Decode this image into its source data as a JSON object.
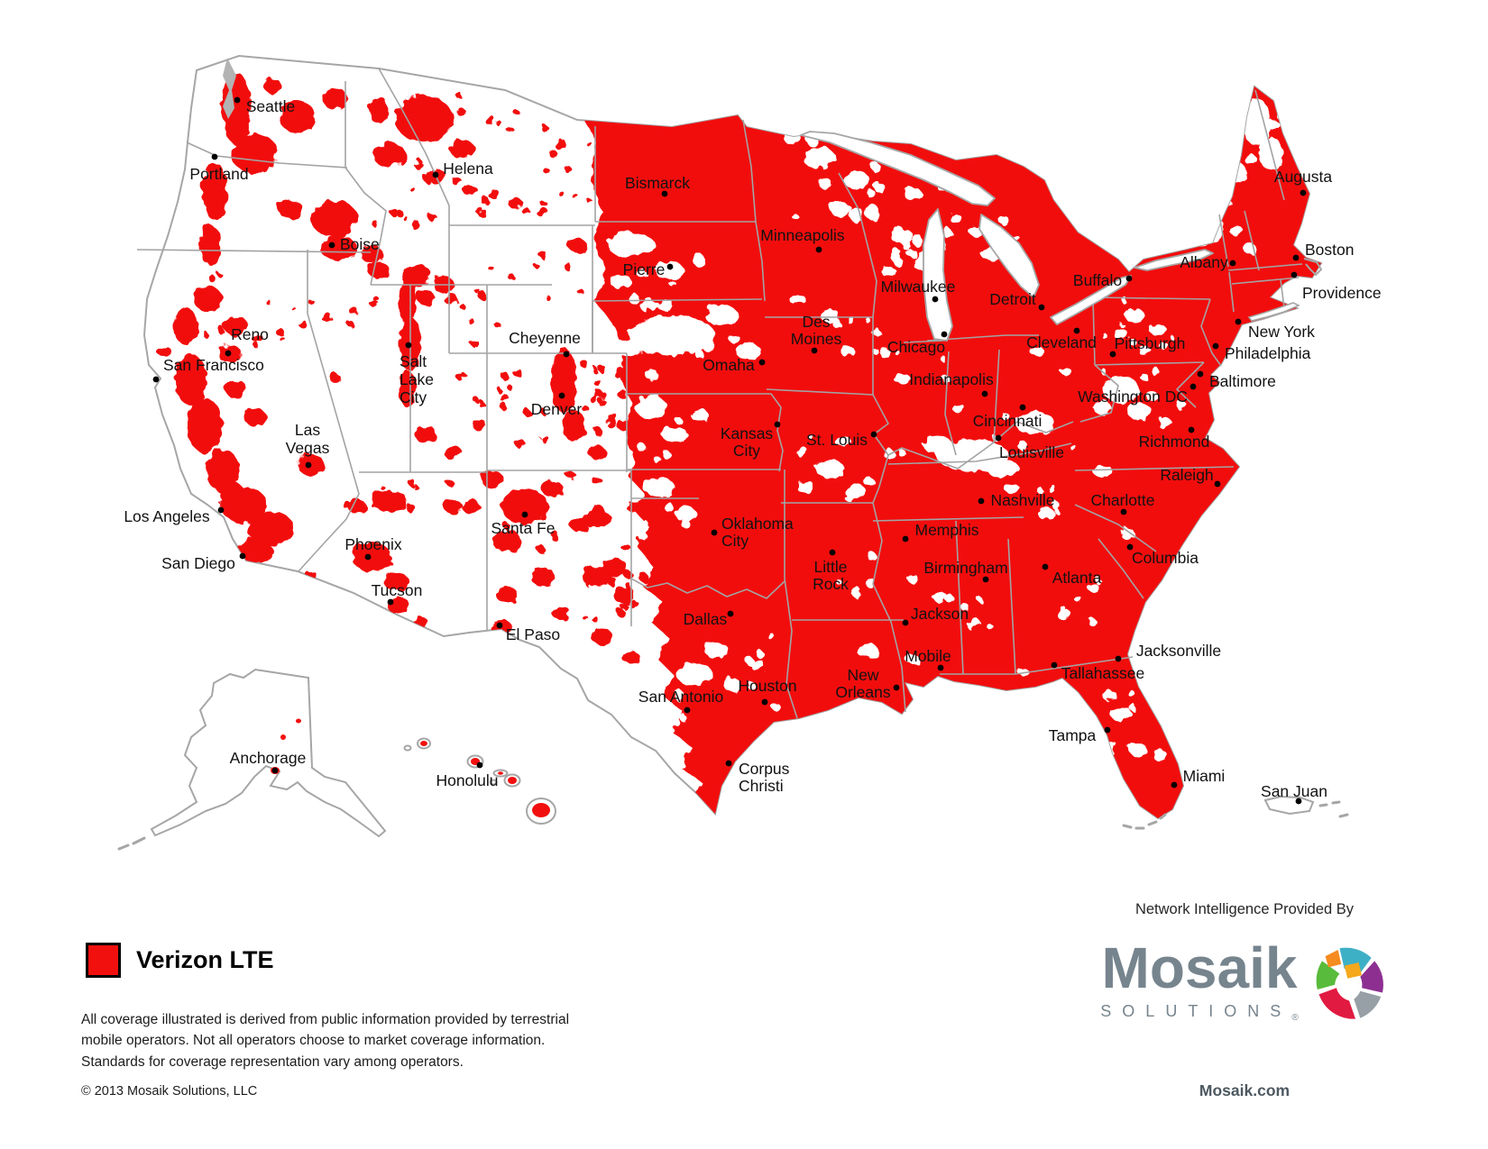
{
  "theme": {
    "coverage_red": "#f2100f",
    "border_gray": "#a6a6a6",
    "label_color": "#121212",
    "brand_slate": "#76848e"
  },
  "legend": {
    "label": "Verizon LTE"
  },
  "disclaimer_lines": [
    "All coverage illustrated is derived from public information provided by terrestrial",
    "mobile operators. Not all operators choose to market coverage information.",
    "Standards for coverage representation vary among operators."
  ],
  "footer": {
    "copyright": "© 2013 Mosaik Solutions, LLC",
    "website": "Mosaik.com"
  },
  "attribution": {
    "heading": "Network Intelligence Provided By",
    "brand": "Mosaik",
    "brand_sub": "SOLUTIONS",
    "registered": "®"
  },
  "map": {
    "cities": [
      {
        "name": "Seattle",
        "dot": [
          263,
          111
        ],
        "label": [
          300,
          124
        ]
      },
      {
        "name": "Portland",
        "dot": [
          238,
          174
        ],
        "label": [
          243,
          199
        ]
      },
      {
        "name": "Helena",
        "dot": [
          483,
          194
        ],
        "label": [
          519,
          193
        ]
      },
      {
        "name": "Boise",
        "dot": [
          368,
          272
        ],
        "label": [
          377,
          277
        ],
        "anchor": "start"
      },
      {
        "name": "Reno",
        "dot": [
          253,
          392
        ],
        "label": [
          277,
          377
        ]
      },
      {
        "name": "San Francisco",
        "dot": [
          173,
          421
        ],
        "label": [
          181,
          411
        ],
        "anchor": "start"
      },
      {
        "name": "Cheyenne",
        "dot": [
          628,
          393
        ],
        "label": [
          604,
          381
        ]
      },
      {
        "name": "Salt Lake City",
        "dot": [
          453,
          383
        ],
        "lines": [
          "Salt",
          "Lake",
          "City"
        ],
        "label": [
          443,
          407
        ],
        "anchor": "start",
        "lh": 20
      },
      {
        "name": "Denver",
        "dot": [
          623,
          439
        ],
        "label": [
          617,
          460
        ]
      },
      {
        "name": "Las Vegas",
        "dot": [
          342,
          516
        ],
        "lines": [
          "Las",
          "Vegas"
        ],
        "label": [
          341,
          483
        ],
        "lh": 20
      },
      {
        "name": "Los Angeles",
        "dot": [
          245,
          566
        ],
        "label": [
          185,
          579
        ]
      },
      {
        "name": "San Diego",
        "dot": [
          269,
          617
        ],
        "label": [
          220,
          631
        ]
      },
      {
        "name": "Phoenix",
        "dot": [
          408,
          618
        ],
        "label": [
          414,
          610
        ]
      },
      {
        "name": "Tucson",
        "dot": [
          433,
          668
        ],
        "label": [
          440,
          661
        ]
      },
      {
        "name": "Santa Fe",
        "dot": [
          582,
          571
        ],
        "label": [
          580,
          592
        ]
      },
      {
        "name": "El Paso",
        "dot": [
          554,
          694
        ],
        "label": [
          591,
          710
        ]
      },
      {
        "name": "Bismarck",
        "dot": [
          737,
          215
        ],
        "label": [
          729,
          209
        ]
      },
      {
        "name": "Pierre",
        "dot": [
          743,
          296
        ],
        "label": [
          714,
          305
        ]
      },
      {
        "name": "Minneapolis",
        "dot": [
          908,
          277
        ],
        "label": [
          890,
          267
        ]
      },
      {
        "name": "Milwaukee",
        "dot": [
          1037,
          332
        ],
        "label": [
          1018,
          324
        ]
      },
      {
        "name": "Des Moines",
        "dot": [
          903,
          389
        ],
        "lines": [
          "Des",
          "Moines"
        ],
        "label": [
          905,
          363
        ],
        "lh": 19
      },
      {
        "name": "Omaha",
        "dot": [
          845,
          402
        ],
        "label": [
          808,
          411
        ]
      },
      {
        "name": "Chicago",
        "dot": [
          1047,
          371
        ],
        "label": [
          1016,
          391
        ]
      },
      {
        "name": "Indianapolis",
        "dot": [
          1092,
          437
        ],
        "label": [
          1055,
          427
        ]
      },
      {
        "name": "Detroit",
        "dot": [
          1155,
          341
        ],
        "label": [
          1123,
          338
        ]
      },
      {
        "name": "Cleveland",
        "dot": [
          1194,
          367
        ],
        "label": [
          1177,
          386
        ]
      },
      {
        "name": "Buffalo",
        "dot": [
          1252,
          309
        ],
        "label": [
          1217,
          317
        ]
      },
      {
        "name": "Pittsburgh",
        "dot": [
          1234,
          393
        ],
        "label": [
          1275,
          387
        ]
      },
      {
        "name": "Albany",
        "dot": [
          1367,
          292
        ],
        "label": [
          1335,
          297
        ]
      },
      {
        "name": "Augusta",
        "dot": [
          1445,
          214
        ],
        "label": [
          1445,
          202
        ]
      },
      {
        "name": "Boston",
        "dot": [
          1437,
          286
        ],
        "label": [
          1447,
          283
        ],
        "anchor": "start"
      },
      {
        "name": "Providence",
        "dot": [
          1435,
          305
        ],
        "label": [
          1444,
          331
        ],
        "anchor": "start"
      },
      {
        "name": "New York",
        "dot": [
          1373,
          357
        ],
        "label": [
          1384,
          374
        ],
        "anchor": "start"
      },
      {
        "name": "Philadelphia",
        "dot": [
          1348,
          384
        ],
        "label": [
          1358,
          398
        ],
        "anchor": "start"
      },
      {
        "name": "Baltimore",
        "dot": [
          1331,
          415
        ],
        "label": [
          1341,
          429
        ],
        "anchor": "start"
      },
      {
        "name": "Washington DC",
        "dot": [
          1323,
          429
        ],
        "label": [
          1317,
          446
        ],
        "anchor": "end"
      },
      {
        "name": "Cincinnati",
        "dot": [
          1134,
          452
        ],
        "label": [
          1117,
          473
        ]
      },
      {
        "name": "Louisville",
        "dot": [
          1107,
          486
        ],
        "label": [
          1144,
          508
        ]
      },
      {
        "name": "Richmond",
        "dot": [
          1321,
          477
        ],
        "label": [
          1302,
          496
        ]
      },
      {
        "name": "Raleigh",
        "dot": [
          1350,
          537
        ],
        "label": [
          1316,
          533
        ]
      },
      {
        "name": "Charlotte",
        "dot": [
          1246,
          568
        ],
        "label": [
          1245,
          561
        ]
      },
      {
        "name": "Nashville",
        "dot": [
          1088,
          556
        ],
        "label": [
          1134,
          561
        ]
      },
      {
        "name": "Memphis",
        "dot": [
          1004,
          598
        ],
        "label": [
          1050,
          594
        ]
      },
      {
        "name": "Columbia",
        "dot": [
          1253,
          607
        ],
        "label": [
          1292,
          625
        ]
      },
      {
        "name": "Birmingham",
        "dot": [
          1093,
          643
        ],
        "label": [
          1071,
          636
        ]
      },
      {
        "name": "Atlanta",
        "dot": [
          1159,
          629
        ],
        "label": [
          1194,
          647
        ]
      },
      {
        "name": "Jackson",
        "dot": [
          1004,
          691
        ],
        "label": [
          1042,
          687
        ]
      },
      {
        "name": "Mobile",
        "dot": [
          1043,
          741
        ],
        "label": [
          1029,
          734
        ]
      },
      {
        "name": "New Orleans",
        "dot": [
          994,
          763
        ],
        "lines": [
          "New",
          "Orleans"
        ],
        "label": [
          957,
          755
        ],
        "lh": 19
      },
      {
        "name": "Houston",
        "dot": [
          848,
          779
        ],
        "label": [
          851,
          767
        ]
      },
      {
        "name": "San Antonio",
        "dot": [
          762,
          788
        ],
        "label": [
          755,
          779
        ]
      },
      {
        "name": "Dallas",
        "dot": [
          810,
          681
        ],
        "label": [
          782,
          693
        ]
      },
      {
        "name": "Little Rock",
        "dot": [
          923,
          613
        ],
        "lines": [
          "Little",
          "Rock"
        ],
        "label": [
          921,
          635
        ],
        "lh": 19
      },
      {
        "name": "St. Louis",
        "dot": [
          969,
          482
        ],
        "label": [
          928,
          494
        ]
      },
      {
        "name": "Kansas City",
        "dot": [
          862,
          471
        ],
        "lines": [
          "Kansas",
          "City"
        ],
        "label": [
          828,
          487
        ],
        "lh": 19
      },
      {
        "name": "Oklahoma City",
        "dot": [
          792,
          591
        ],
        "lines": [
          "Oklahoma",
          "City"
        ],
        "label": [
          800,
          587
        ],
        "anchor": "start",
        "lh": 19
      },
      {
        "name": "Corpus Christi",
        "dot": [
          808,
          847
        ],
        "lines": [
          "Corpus",
          "Christi"
        ],
        "label": [
          819,
          859
        ],
        "anchor": "start",
        "lh": 19
      },
      {
        "name": "Tampa",
        "dot": [
          1228,
          810
        ],
        "label": [
          1189,
          822
        ]
      },
      {
        "name": "Miami",
        "dot": [
          1302,
          871
        ],
        "label": [
          1335,
          867
        ]
      },
      {
        "name": "Jacksonville",
        "dot": [
          1240,
          731
        ],
        "label": [
          1307,
          728
        ]
      },
      {
        "name": "Tallahassee",
        "dot": [
          1169,
          738
        ],
        "label": [
          1223,
          753
        ]
      },
      {
        "name": "San Juan",
        "dot": [
          1440,
          889
        ],
        "label": [
          1435,
          884
        ]
      },
      {
        "name": "Anchorage",
        "dot": [
          305,
          855
        ],
        "label": [
          297,
          847
        ]
      },
      {
        "name": "Honolulu",
        "dot": [
          532,
          849
        ],
        "label": [
          518,
          872
        ]
      }
    ]
  }
}
